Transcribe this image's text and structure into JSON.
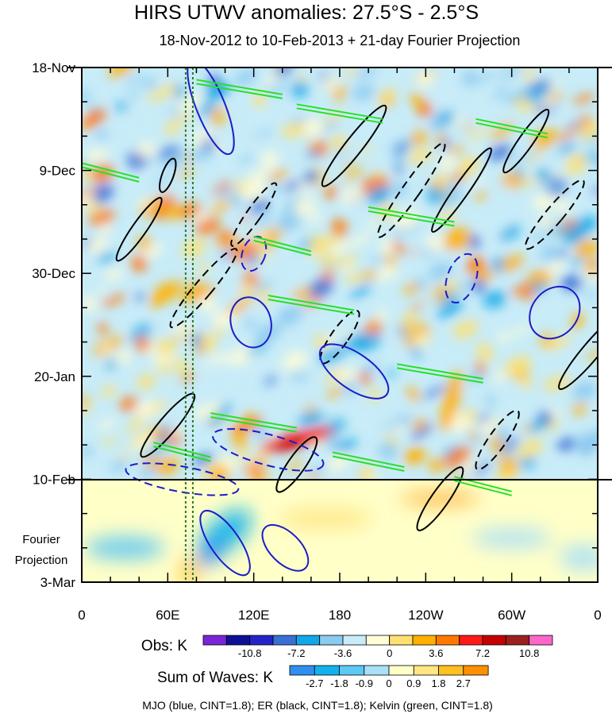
{
  "chart_data": {
    "type": "heatmap",
    "title": "HIRS UTWV anomalies: 27.5°S - 2.5°S",
    "subtitle": "18-Nov-2012 to 10-Feb-2013 + 21-day Fourier Projection",
    "x_ticks": [
      "0",
      "60E",
      "120E",
      "180",
      "120W",
      "60W",
      "0"
    ],
    "x_tick_positions": [
      0,
      60,
      120,
      180,
      240,
      300,
      360
    ],
    "xlim": [
      0,
      360
    ],
    "y_ticks": [
      "18-Nov",
      "9-Dec",
      "30-Dec",
      "20-Jan",
      "10-Feb",
      "3-Mar"
    ],
    "y_tick_days": [
      0,
      21,
      42,
      63,
      84,
      105
    ],
    "ylim_days": [
      0,
      105
    ],
    "projection_start_day": 84,
    "projection_label": [
      "Fourier",
      "Projection"
    ],
    "dotted_lines_lon": [
      72.5,
      77.5
    ],
    "obs_colorbar": {
      "label": "Obs: K",
      "tick_labels": [
        "-10.8",
        "-7.2",
        "-3.6",
        "0",
        "3.6",
        "7.2",
        "10.8"
      ],
      "colors": [
        "#7b24d8",
        "#0f0f96",
        "#2424c8",
        "#3a6fd4",
        "#10a8e8",
        "#8ccaf0",
        "#c8ecf8",
        "#fffcd8",
        "#ffe070",
        "#ffb000",
        "#ff7800",
        "#ff1a1a",
        "#c40000",
        "#9a2020",
        "#ff66c8"
      ]
    },
    "waves_colorbar": {
      "label": "Sum of Waves: K",
      "tick_labels": [
        "-2.7",
        "-1.8",
        "-0.9",
        "0",
        "0.9",
        "1.8",
        "2.7"
      ],
      "colors": [
        "#2e8ff0",
        "#12b2ee",
        "#5cc8f4",
        "#a8e0f8",
        "#ffffc8",
        "#ffe680",
        "#ffc020",
        "#ff9000"
      ]
    },
    "contours": {
      "MJO": {
        "color": "#1c1cc8",
        "cint": 1.8
      },
      "ER": {
        "color": "#000000",
        "cint": 1.8
      },
      "Kelvin": {
        "color": "#28e028",
        "cint": 1.8
      }
    },
    "footnote": "MJO (blue, CINT=1.8); ER (black, CINT=1.8); Kelvin (green, CINT=1.8)"
  }
}
